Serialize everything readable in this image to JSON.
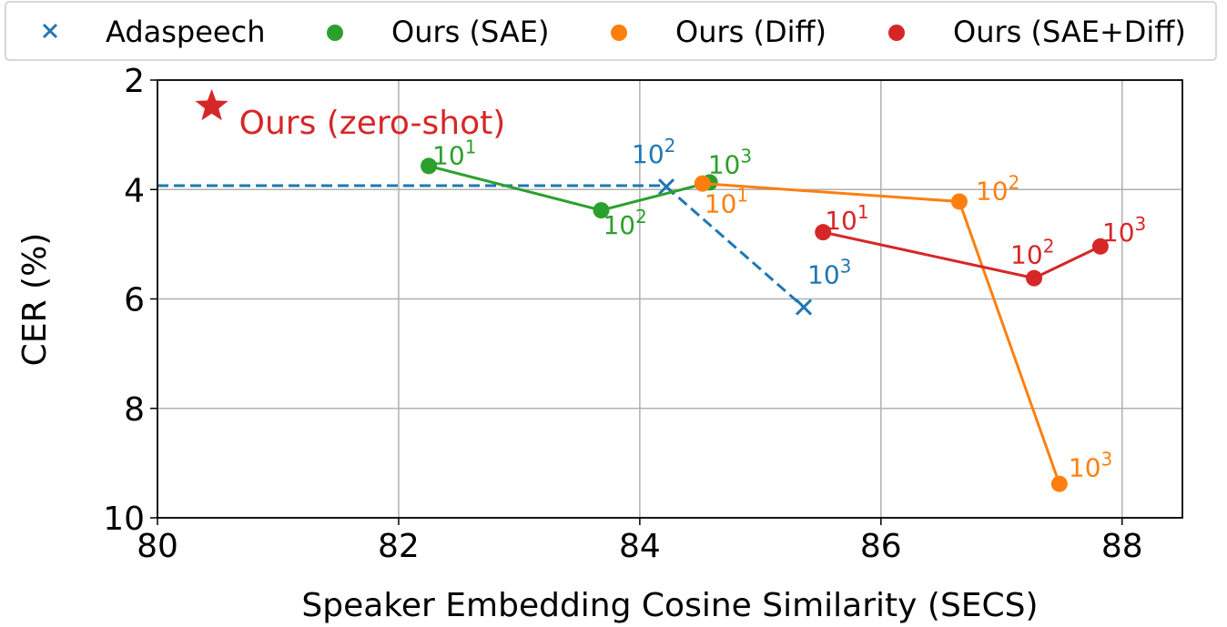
{
  "chart_data": {
    "type": "scatter",
    "xlabel": "Speaker Embedding Cosine Similarity (SECS)",
    "ylabel": "CER (%)",
    "xlim": [
      80,
      88.5
    ],
    "ylim": [
      10,
      2
    ],
    "y_inverted": true,
    "grid": true,
    "xticks": [
      "80",
      "82",
      "84",
      "86",
      "88"
    ],
    "yticks": [
      "2",
      "4",
      "6",
      "8",
      "10"
    ],
    "legend": {
      "placement": "top-outside",
      "entries": [
        "Adaspeech",
        "Ours (SAE)",
        "Ours (Diff)",
        "Ours (SAE+Diff)"
      ]
    },
    "series": [
      {
        "name": "Adaspeech",
        "color": "#1f77b4",
        "marker": "x",
        "points": [
          {
            "x": 84.22,
            "y": 3.95,
            "label_base": "10",
            "label_exp": "2"
          },
          {
            "x": 85.36,
            "y": 6.15,
            "label_base": "10",
            "label_exp": "3"
          }
        ],
        "baseline": {
          "y": 3.93,
          "from_x": 80,
          "to_x": 84.22
        }
      },
      {
        "name": "Ours (SAE)",
        "color": "#2ca02c",
        "marker": "o",
        "points": [
          {
            "x": 82.25,
            "y": 3.57,
            "label_base": "10",
            "label_exp": "1"
          },
          {
            "x": 83.68,
            "y": 4.38,
            "label_base": "10",
            "label_exp": "2"
          },
          {
            "x": 84.58,
            "y": 3.87,
            "label_base": "10",
            "label_exp": "3"
          }
        ]
      },
      {
        "name": "Ours (Diff)",
        "color": "#ff7f0e",
        "marker": "o",
        "points": [
          {
            "x": 84.52,
            "y": 3.89,
            "label_base": "10",
            "label_exp": "1"
          },
          {
            "x": 86.65,
            "y": 4.22,
            "label_base": "10",
            "label_exp": "2"
          },
          {
            "x": 87.48,
            "y": 9.38,
            "label_base": "10",
            "label_exp": "3"
          }
        ]
      },
      {
        "name": "Ours (SAE+Diff)",
        "color": "#d62728",
        "marker": "o",
        "points": [
          {
            "x": 85.52,
            "y": 4.78,
            "label_base": "10",
            "label_exp": "1"
          },
          {
            "x": 87.27,
            "y": 5.62,
            "label_base": "10",
            "label_exp": "2"
          },
          {
            "x": 87.82,
            "y": 5.04,
            "label_base": "10",
            "label_exp": "3"
          }
        ]
      }
    ],
    "annotations": [
      {
        "text": "Ours (zero-shot)",
        "x": 80.45,
        "y": 2.48,
        "marker": "star",
        "color": "#d62728"
      }
    ]
  }
}
